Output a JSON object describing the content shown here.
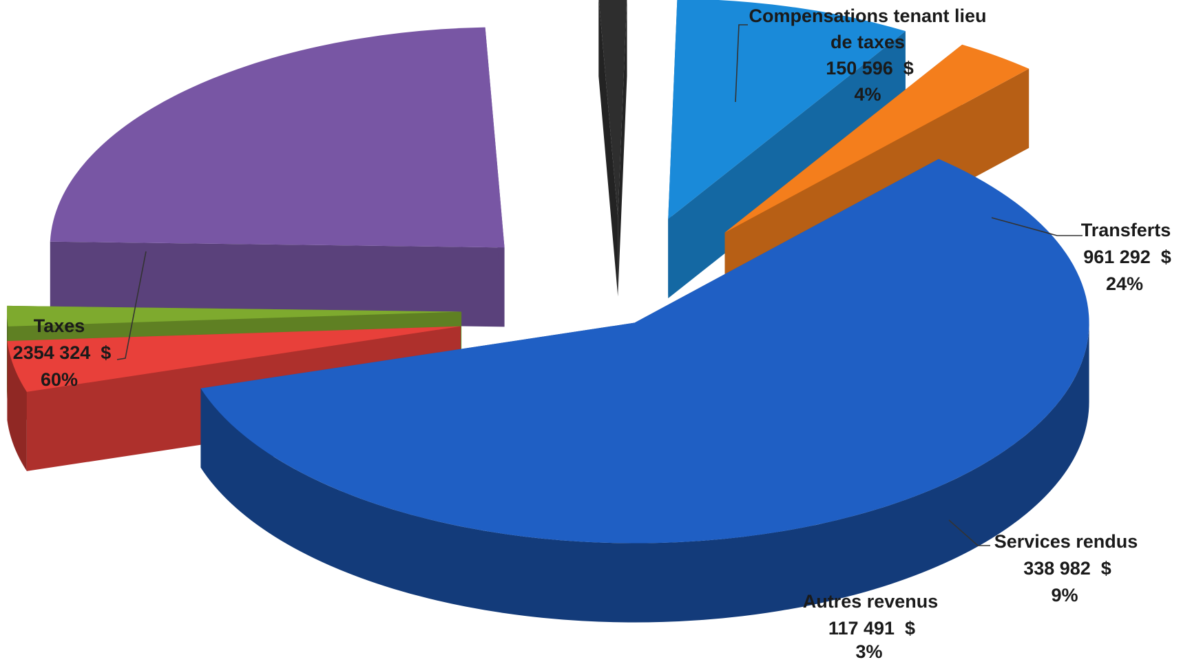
{
  "chart_data": {
    "type": "pie",
    "style": "3d-exploded",
    "title": "",
    "slices": [
      {
        "name": "Taxes",
        "amount": "2354 324  $",
        "percent": "60%",
        "value": 2354324,
        "color": "#1f5fc4"
      },
      {
        "name": "Compensations tenant lieu de taxes",
        "name_lines": [
          "Compensations tenant lieu",
          "de taxes"
        ],
        "amount": "150 596  $",
        "percent": "4%",
        "value": 150596,
        "color": "#e8403a"
      },
      {
        "name": "",
        "amount": "",
        "percent": "",
        "value": 60000,
        "color": "#7eaa2e"
      },
      {
        "name": "Transferts",
        "amount": "961 292  $",
        "percent": "24%",
        "value": 961292,
        "color": "#7856a4"
      },
      {
        "name": "",
        "amount": "",
        "percent": "",
        "value": 40000,
        "color": "#2e2e2e"
      },
      {
        "name": "Services rendus",
        "amount": "338 982  $",
        "percent": "9%",
        "value": 338982,
        "color": "#1a8ad9"
      },
      {
        "name": "Autres revenus",
        "amount": "117 491  $",
        "percent": "3%",
        "value": 117491,
        "color": "#f47e1c"
      }
    ],
    "legend": "none",
    "labels": "outside-with-leader-lines"
  }
}
